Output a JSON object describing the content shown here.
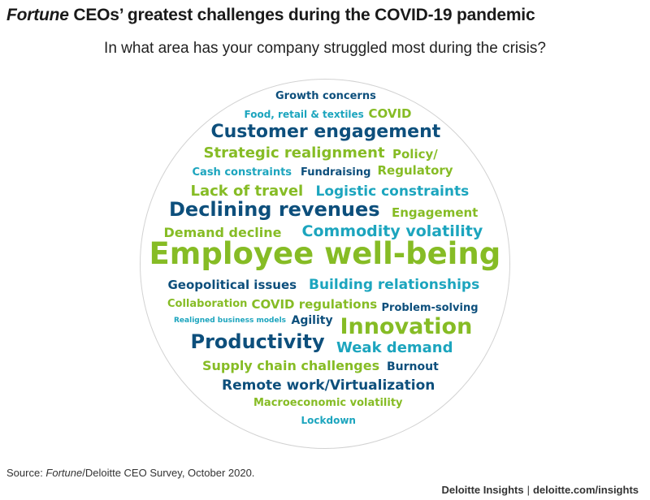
{
  "header": {
    "title_italic": "Fortune",
    "title_rest": " CEOs’ greatest challenges during the COVID-19 pandemic",
    "subtitle": "In what area has your company struggled most during the crisis?"
  },
  "colors": {
    "dark_blue": "#0d4f7c",
    "green": "#86bc25",
    "teal": "#1ca5be"
  },
  "chart_data": {
    "type": "word_cloud",
    "title": "Fortune CEOs’ greatest challenges during the COVID-19 pandemic",
    "subtitle": "In what area has your company struggled most during the crisis?",
    "words": [
      {
        "text": "Growth concerns",
        "weight": 2,
        "color": "#0d4f7c"
      },
      {
        "text": "Food, retail & textiles",
        "weight": 1,
        "color": "#1ca5be"
      },
      {
        "text": "COVID",
        "weight": 2,
        "color": "#86bc25"
      },
      {
        "text": "Customer engagement",
        "weight": 6,
        "color": "#0d4f7c"
      },
      {
        "text": "Strategic realignment",
        "weight": 4,
        "color": "#86bc25"
      },
      {
        "text": "Policy/",
        "weight": 3,
        "color": "#86bc25"
      },
      {
        "text": "Cash constraints",
        "weight": 2,
        "color": "#1ca5be"
      },
      {
        "text": "Fundraising",
        "weight": 2,
        "color": "#0d4f7c"
      },
      {
        "text": "Regulatory",
        "weight": 3,
        "color": "#86bc25"
      },
      {
        "text": "Lack of travel",
        "weight": 4,
        "color": "#86bc25"
      },
      {
        "text": "Logistic constraints",
        "weight": 4,
        "color": "#1ca5be"
      },
      {
        "text": "Declining revenues",
        "weight": 7,
        "color": "#0d4f7c"
      },
      {
        "text": "Engagement",
        "weight": 3,
        "color": "#86bc25"
      },
      {
        "text": "Demand decline",
        "weight": 4,
        "color": "#86bc25"
      },
      {
        "text": "Commodity volatility",
        "weight": 5,
        "color": "#1ca5be"
      },
      {
        "text": "Employee well-being",
        "weight": 10,
        "color": "#86bc25"
      },
      {
        "text": "Geopolitical issues",
        "weight": 3,
        "color": "#0d4f7c"
      },
      {
        "text": "Building relationships",
        "weight": 4,
        "color": "#1ca5be"
      },
      {
        "text": "Collaboration",
        "weight": 2,
        "color": "#86bc25"
      },
      {
        "text": "COVID regulations",
        "weight": 3,
        "color": "#86bc25"
      },
      {
        "text": "Problem-solving",
        "weight": 2,
        "color": "#0d4f7c"
      },
      {
        "text": "Realigned business models",
        "weight": 1,
        "color": "#1ca5be"
      },
      {
        "text": "Agility",
        "weight": 2,
        "color": "#0d4f7c"
      },
      {
        "text": "Innovation",
        "weight": 8,
        "color": "#86bc25"
      },
      {
        "text": "Productivity",
        "weight": 7,
        "color": "#0d4f7c"
      },
      {
        "text": "Weak demand",
        "weight": 4,
        "color": "#1ca5be"
      },
      {
        "text": "Supply chain challenges",
        "weight": 3,
        "color": "#86bc25"
      },
      {
        "text": "Burnout",
        "weight": 2,
        "color": "#0d4f7c"
      },
      {
        "text": "Remote work/Virtualization",
        "weight": 4,
        "color": "#0d4f7c"
      },
      {
        "text": "Macroeconomic volatility",
        "weight": 2,
        "color": "#86bc25"
      },
      {
        "text": "Lockdown",
        "weight": 2,
        "color": "#1ca5be"
      }
    ]
  },
  "footer": {
    "source_prefix": "Source: ",
    "source_italic": "Fortune",
    "source_rest": "/Deloitte CEO Survey, October 2020.",
    "brand": "Deloitte Insights",
    "separator": "|",
    "url": "deloitte.com/insights"
  }
}
